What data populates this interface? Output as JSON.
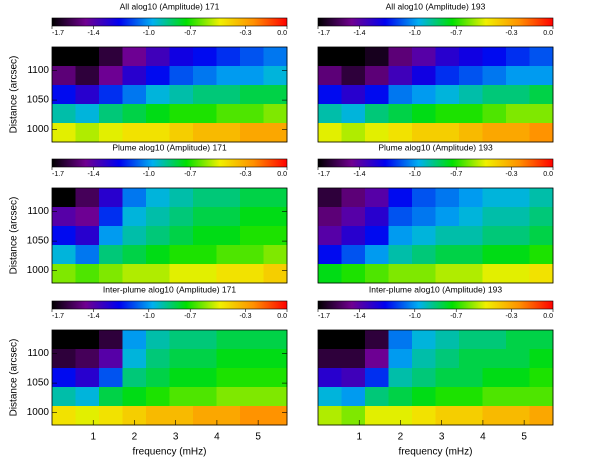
{
  "chart_data": [
    {
      "type": "heatmap",
      "title": "All alog10 (Amplitude) 171",
      "ylabel": "Distance (arcsec)",
      "colormap": [
        "#000000",
        "#700090",
        "#0000f0",
        "#00b0f0",
        "#00e000",
        "#f0f000",
        "#ff9000",
        "#ff0000"
      ],
      "zlim": [
        -1.7,
        0
      ],
      "zticks": [
        -1.7,
        -1.4,
        {
          "value": -1,
          "label": "-1.0"
        },
        -0.7,
        -0.3,
        {
          "value": 0,
          "label": "0.0"
        }
      ],
      "xlim": [
        0,
        5.7
      ],
      "ylim": [
        979,
        1140
      ],
      "yticks": [
        1000,
        1050,
        1100
      ],
      "z": [
        [
          -1.7,
          -1.7,
          -1.6,
          -1.45,
          -1.35,
          -1.25,
          -1.2,
          -1.15,
          -1.1,
          -1.05
        ],
        [
          -1.5,
          -1.6,
          -1.45,
          -1.3,
          -1.2,
          -1.1,
          -1.05,
          -1.0,
          -1.0,
          -0.95
        ],
        [
          -1.2,
          -1.3,
          -1.15,
          -1.05,
          -0.95,
          -0.9,
          -0.85,
          -0.85,
          -0.8,
          -0.8
        ],
        [
          -0.9,
          -0.95,
          -0.85,
          -0.8,
          -0.75,
          -0.7,
          -0.7,
          -0.65,
          -0.65,
          -0.6
        ],
        [
          -0.5,
          -0.55,
          -0.5,
          -0.45,
          -0.45,
          -0.4,
          -0.35,
          -0.35,
          -0.3,
          -0.3
        ]
      ]
    },
    {
      "type": "heatmap",
      "title": "All alog10 (Amplitude) 193",
      "colormap": [
        "#000000",
        "#700090",
        "#0000f0",
        "#00b0f0",
        "#00e000",
        "#f0f000",
        "#ff9000",
        "#ff0000"
      ],
      "zlim": [
        -1.7,
        0
      ],
      "zticks": [
        -1.7,
        -1.4,
        {
          "value": -1,
          "label": "-1.0"
        },
        -0.7,
        -0.3,
        {
          "value": 0,
          "label": "0.0"
        }
      ],
      "xlim": [
        0,
        5.7
      ],
      "ylim": [
        979,
        1140
      ],
      "z": [
        [
          -1.7,
          -1.7,
          -1.65,
          -1.5,
          -1.4,
          -1.3,
          -1.25,
          -1.2,
          -1.15,
          -1.1
        ],
        [
          -1.5,
          -1.6,
          -1.5,
          -1.35,
          -1.25,
          -1.15,
          -1.1,
          -1.05,
          -1.0,
          -1.0
        ],
        [
          -1.2,
          -1.3,
          -1.2,
          -1.05,
          -1.0,
          -0.95,
          -0.9,
          -0.85,
          -0.85,
          -0.8
        ],
        [
          -0.9,
          -0.95,
          -0.85,
          -0.8,
          -0.75,
          -0.7,
          -0.7,
          -0.65,
          -0.6,
          -0.6
        ],
        [
          -0.5,
          -0.55,
          -0.5,
          -0.45,
          -0.4,
          -0.4,
          -0.35,
          -0.3,
          -0.3,
          -0.25
        ]
      ]
    },
    {
      "type": "heatmap",
      "title": "Plume alog10 (Amplitude) 171",
      "ylabel": "Distance (arcsec)",
      "colormap": [
        "#000000",
        "#700090",
        "#0000f0",
        "#00b0f0",
        "#00e000",
        "#f0f000",
        "#ff9000",
        "#ff0000"
      ],
      "zlim": [
        -1.7,
        0
      ],
      "zticks": [
        -1.7,
        -1.4,
        {
          "value": -1,
          "label": "-1.0"
        },
        -0.7,
        -0.3,
        {
          "value": 0,
          "label": "0.0"
        }
      ],
      "xlim": [
        0,
        5.7
      ],
      "ylim": [
        979,
        1140
      ],
      "yticks": [
        1000,
        1050,
        1100
      ],
      "z": [
        [
          -1.7,
          -1.55,
          -1.3,
          -1.05,
          -0.95,
          -0.9,
          -0.85,
          -0.85,
          -0.8,
          -0.8
        ],
        [
          -1.4,
          -1.45,
          -1.15,
          -0.95,
          -0.9,
          -0.85,
          -0.8,
          -0.8,
          -0.75,
          -0.75
        ],
        [
          -1.2,
          -1.3,
          -1.0,
          -0.9,
          -0.85,
          -0.8,
          -0.75,
          -0.75,
          -0.7,
          -0.7
        ],
        [
          -0.95,
          -1.05,
          -0.85,
          -0.8,
          -0.75,
          -0.7,
          -0.7,
          -0.65,
          -0.65,
          -0.6
        ],
        [
          -0.6,
          -0.65,
          -0.6,
          -0.55,
          -0.55,
          -0.5,
          -0.5,
          -0.45,
          -0.45,
          -0.4
        ]
      ]
    },
    {
      "type": "heatmap",
      "title": "Plume alog10 (Amplitude) 193",
      "colormap": [
        "#000000",
        "#700090",
        "#0000f0",
        "#00b0f0",
        "#00e000",
        "#f0f000",
        "#ff9000",
        "#ff0000"
      ],
      "zlim": [
        -1.7,
        0
      ],
      "zticks": [
        -1.7,
        -1.4,
        {
          "value": -1,
          "label": "-1.0"
        },
        -0.7,
        -0.3,
        {
          "value": 0,
          "label": "0.0"
        }
      ],
      "xlim": [
        0,
        5.7
      ],
      "ylim": [
        979,
        1140
      ],
      "z": [
        [
          -1.6,
          -1.5,
          -1.4,
          -1.2,
          -1.1,
          -1.05,
          -1.0,
          -0.95,
          -0.95,
          -0.9
        ],
        [
          -1.5,
          -1.4,
          -1.3,
          -1.1,
          -1.05,
          -1.0,
          -0.95,
          -0.9,
          -0.9,
          -0.85
        ],
        [
          -1.4,
          -1.3,
          -1.2,
          -1.0,
          -0.95,
          -0.9,
          -0.9,
          -0.85,
          -0.85,
          -0.8
        ],
        [
          -1.2,
          -1.1,
          -1.0,
          -0.9,
          -0.85,
          -0.8,
          -0.8,
          -0.75,
          -0.75,
          -0.7
        ],
        [
          -0.75,
          -0.7,
          -0.65,
          -0.6,
          -0.6,
          -0.55,
          -0.55,
          -0.5,
          -0.5,
          -0.45
        ]
      ]
    },
    {
      "type": "heatmap",
      "title": "Inter-plume alog10 (Amplitude) 171",
      "ylabel": "Distance (arcsec)",
      "xlabel": "frequency (mHz)",
      "colormap": [
        "#000000",
        "#700090",
        "#0000f0",
        "#00b0f0",
        "#00e000",
        "#f0f000",
        "#ff9000",
        "#ff0000"
      ],
      "zlim": [
        -1.7,
        0
      ],
      "zticks": [
        -1.7,
        -1.4,
        {
          "value": -1,
          "label": "-1.0"
        },
        -0.7,
        -0.3,
        {
          "value": 0,
          "label": "0.0"
        }
      ],
      "xlim": [
        0,
        5.7
      ],
      "xticks": [
        1,
        2,
        3,
        4,
        5
      ],
      "ylim": [
        979,
        1140
      ],
      "yticks": [
        1000,
        1050,
        1100
      ],
      "z": [
        [
          -1.7,
          -1.7,
          -1.6,
          -1.0,
          -0.9,
          -0.85,
          -0.85,
          -0.8,
          -0.8,
          -0.8
        ],
        [
          -1.6,
          -1.55,
          -1.4,
          -0.95,
          -0.85,
          -0.8,
          -0.8,
          -0.75,
          -0.75,
          -0.75
        ],
        [
          -1.2,
          -1.3,
          -1.1,
          -0.85,
          -0.8,
          -0.75,
          -0.75,
          -0.7,
          -0.7,
          -0.7
        ],
        [
          -0.9,
          -0.95,
          -0.8,
          -0.75,
          -0.7,
          -0.65,
          -0.65,
          -0.6,
          -0.6,
          -0.6
        ],
        [
          -0.45,
          -0.5,
          -0.45,
          -0.4,
          -0.35,
          -0.35,
          -0.3,
          -0.3,
          -0.25,
          -0.25
        ]
      ]
    },
    {
      "type": "heatmap",
      "title": "Inter-plume alog10 (Amplitude) 193",
      "xlabel": "frequency (mHz)",
      "colormap": [
        "#000000",
        "#700090",
        "#0000f0",
        "#00b0f0",
        "#00e000",
        "#f0f000",
        "#ff9000",
        "#ff0000"
      ],
      "zlim": [
        -1.7,
        0
      ],
      "zticks": [
        -1.7,
        -1.4,
        {
          "value": -1,
          "label": "-1.0"
        },
        -0.7,
        -0.3,
        {
          "value": 0,
          "label": "0.0"
        }
      ],
      "xlim": [
        0,
        5.7
      ],
      "xticks": [
        1,
        2,
        3,
        4,
        5
      ],
      "ylim": [
        979,
        1140
      ],
      "z": [
        [
          -1.7,
          -1.7,
          -1.6,
          -1.05,
          -0.95,
          -0.9,
          -0.85,
          -0.85,
          -0.8,
          -0.8
        ],
        [
          -1.6,
          -1.6,
          -1.45,
          -1.0,
          -0.9,
          -0.85,
          -0.8,
          -0.8,
          -0.8,
          -0.75
        ],
        [
          -1.3,
          -1.35,
          -1.15,
          -0.9,
          -0.85,
          -0.8,
          -0.8,
          -0.75,
          -0.75,
          -0.7
        ],
        [
          -0.95,
          -1.0,
          -0.85,
          -0.8,
          -0.75,
          -0.7,
          -0.7,
          -0.65,
          -0.65,
          -0.65
        ],
        [
          -0.55,
          -0.6,
          -0.5,
          -0.5,
          -0.45,
          -0.4,
          -0.4,
          -0.35,
          -0.35,
          -0.3
        ]
      ]
    }
  ]
}
